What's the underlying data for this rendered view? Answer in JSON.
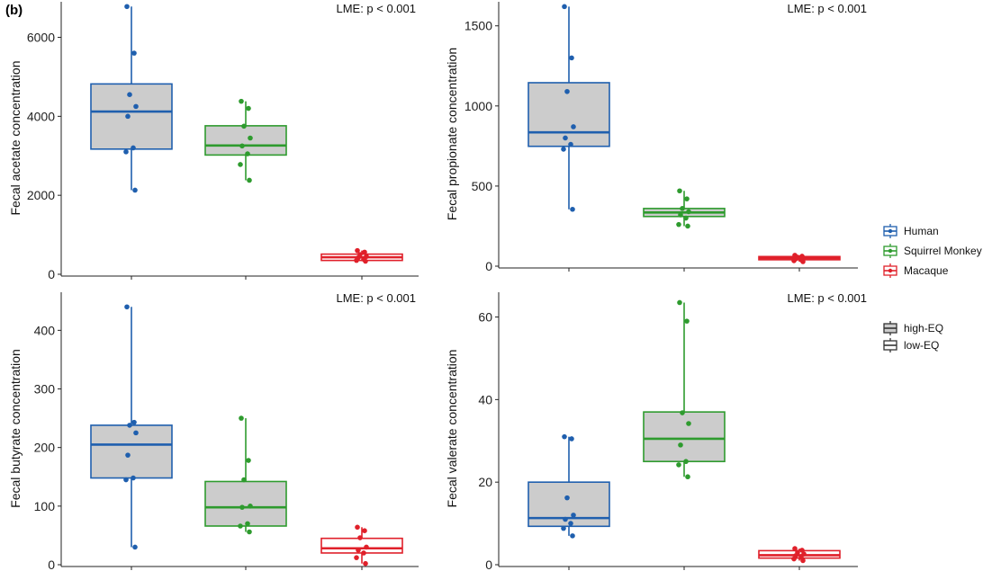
{
  "panel_label": "(b)",
  "colors": {
    "Human": "#1f5fae",
    "Squirrel Monkey": "#2e9b2e",
    "Macaque": "#e0202a",
    "box_fill_high": "#cccccc",
    "box_fill_low": "#ffffff"
  },
  "legend": {
    "species": [
      "Human",
      "Squirrel Monkey",
      "Macaque"
    ],
    "eq": [
      "high-EQ",
      "low-EQ"
    ]
  },
  "chart_data": [
    {
      "type": "box",
      "id": "acetate",
      "ylabel": "Fecal acetate concentration",
      "annotation": "LME: p < 0.001",
      "ylim": [
        0,
        6900
      ],
      "yticks": [
        0,
        2000,
        4000,
        6000
      ],
      "groups": [
        {
          "name": "Human",
          "eq": "high-EQ",
          "min": 2130,
          "q1": 3170,
          "median": 4120,
          "q3": 4820,
          "max": 6780,
          "points": [
            6780,
            5600,
            4550,
            4250,
            4000,
            3200,
            3100,
            2130
          ]
        },
        {
          "name": "Squirrel Monkey",
          "eq": "high-EQ",
          "min": 2380,
          "q1": 3020,
          "median": 3260,
          "q3": 3760,
          "max": 4380,
          "points": [
            4380,
            4200,
            3750,
            3450,
            3250,
            3050,
            2780,
            2380
          ]
        },
        {
          "name": "Macaque",
          "eq": "low-EQ",
          "min": 330,
          "q1": 350,
          "median": 430,
          "q3": 510,
          "max": 600,
          "points": [
            600,
            560,
            500,
            450,
            420,
            380,
            350,
            330
          ]
        }
      ]
    },
    {
      "type": "box",
      "id": "propionate",
      "ylabel": "Fecal propionate concentration",
      "annotation": "LME: p < 0.001",
      "ylim": [
        0,
        1650
      ],
      "yticks": [
        0,
        500,
        1000,
        1500
      ],
      "groups": [
        {
          "name": "Human",
          "eq": "high-EQ",
          "min": 355,
          "q1": 748,
          "median": 835,
          "q3": 1145,
          "max": 1620,
          "points": [
            1620,
            1300,
            1090,
            870,
            800,
            760,
            730,
            355
          ]
        },
        {
          "name": "Squirrel Monkey",
          "eq": "high-EQ",
          "min": 250,
          "q1": 310,
          "median": 335,
          "q3": 360,
          "max": 470,
          "points": [
            470,
            420,
            360,
            340,
            320,
            300,
            260,
            250
          ]
        },
        {
          "name": "Macaque",
          "eq": "low-EQ",
          "min": 28,
          "q1": 40,
          "median": 50,
          "q3": 60,
          "max": 68,
          "points": [
            68,
            62,
            56,
            50,
            46,
            40,
            34,
            28
          ]
        }
      ]
    },
    {
      "type": "box",
      "id": "butyrate",
      "ylabel": "Fecal butyrate concentration",
      "annotation": "LME: p < 0.001",
      "ylim": [
        0,
        465
      ],
      "yticks": [
        0,
        100,
        200,
        300,
        400
      ],
      "groups": [
        {
          "name": "Human",
          "eq": "high-EQ",
          "min": 30,
          "q1": 148,
          "median": 205,
          "q3": 238,
          "max": 440,
          "points": [
            440,
            243,
            238,
            225,
            187,
            148,
            145,
            30
          ]
        },
        {
          "name": "Squirrel Monkey",
          "eq": "high-EQ",
          "min": 56,
          "q1": 66,
          "median": 98,
          "q3": 142,
          "max": 250,
          "points": [
            250,
            178,
            145,
            100,
            98,
            70,
            66,
            56
          ]
        },
        {
          "name": "Macaque",
          "eq": "low-EQ",
          "min": 2,
          "q1": 20,
          "median": 28,
          "q3": 45,
          "max": 64,
          "points": [
            64,
            58,
            46,
            30,
            25,
            20,
            12,
            2
          ]
        }
      ]
    },
    {
      "type": "box",
      "id": "valerate",
      "ylabel": "Fecal valerate concentration",
      "annotation": "LME: p < 0.001",
      "ylim": [
        0,
        66
      ],
      "yticks": [
        0,
        20,
        40,
        60
      ],
      "groups": [
        {
          "name": "Human",
          "eq": "high-EQ",
          "min": 7,
          "q1": 9.3,
          "median": 11.3,
          "q3": 20,
          "max": 31,
          "points": [
            31,
            30.5,
            16.2,
            12,
            11,
            10,
            8.8,
            7
          ]
        },
        {
          "name": "Squirrel Monkey",
          "eq": "high-EQ",
          "min": 21.3,
          "q1": 25,
          "median": 30.5,
          "q3": 37,
          "max": 63.5,
          "points": [
            63.5,
            59,
            36.8,
            34.2,
            29,
            25,
            24.2,
            21.3
          ]
        },
        {
          "name": "Macaque",
          "eq": "low-EQ",
          "min": 1,
          "q1": 1.6,
          "median": 2.3,
          "q3": 3.4,
          "max": 3.9,
          "points": [
            3.9,
            3.5,
            3,
            2.6,
            2.2,
            1.8,
            1.4,
            1
          ]
        }
      ]
    }
  ]
}
